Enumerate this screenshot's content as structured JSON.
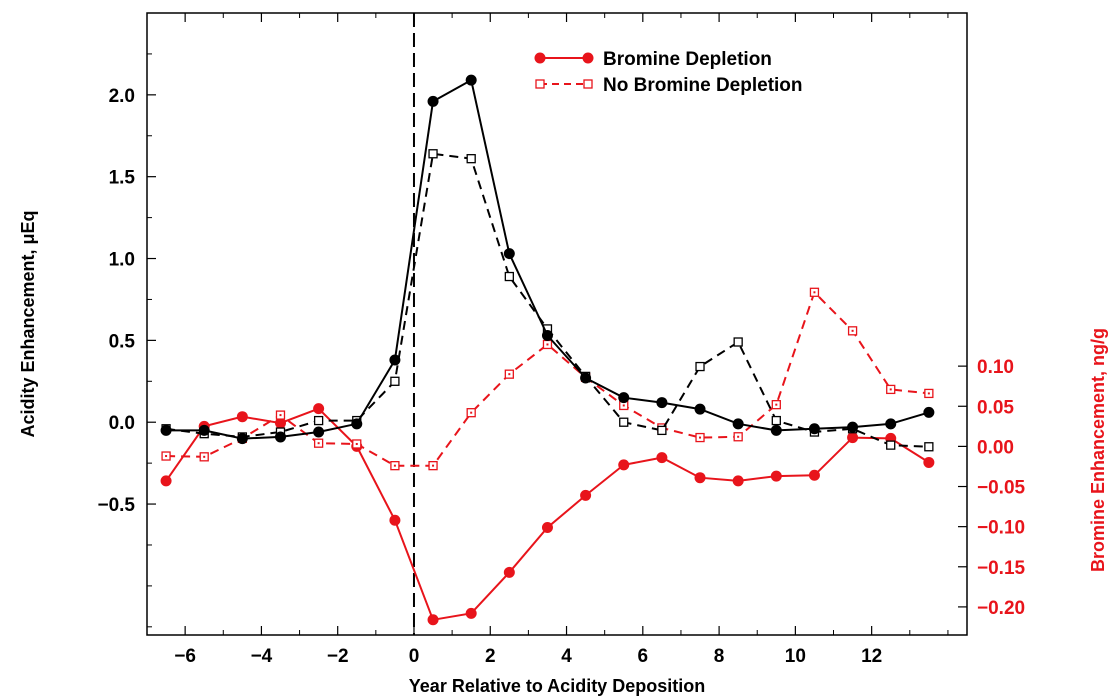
{
  "chart_data": {
    "type": "line",
    "xlabel": "Year Relative to Acidity Deposition",
    "ylabel_left": "Acidity Enhancement, μEq",
    "ylabel_right": "Bromine Enhancement, ng/g",
    "xlim": [
      -7,
      14.5
    ],
    "xticks": [
      -6,
      -4,
      -2,
      0,
      2,
      4,
      6,
      8,
      10,
      12
    ],
    "xtick_labels": [
      "−6",
      "−4",
      "−2",
      "0",
      "2",
      "4",
      "6",
      "8",
      "10",
      "12"
    ],
    "ylim_left": [
      -1.3,
      2.5
    ],
    "yticks_left": [
      -0.5,
      0.0,
      0.5,
      1.0,
      1.5,
      2.0
    ],
    "ytick_labels_left": [
      "−0.5",
      "0.0",
      "0.5",
      "1.0",
      "1.5",
      "2.0"
    ],
    "ylim_right": [
      -0.235,
      0.54
    ],
    "yticks_right": [
      -0.2,
      -0.15,
      -0.1,
      -0.05,
      0.0,
      0.05,
      0.1
    ],
    "ytick_labels_right": [
      "−0.20",
      "−0.15",
      "−0.10",
      "−0.05",
      "0.00",
      "0.05",
      "0.10"
    ],
    "vertical_line_x": 0,
    "legend_position": "top-center",
    "colors": {
      "black": "#000000",
      "red": "#e8141b"
    },
    "x": [
      -6.5,
      -5.5,
      -4.5,
      -3.5,
      -2.5,
      -1.5,
      -0.5,
      0.5,
      1.5,
      2.5,
      3.5,
      4.5,
      5.5,
      6.5,
      7.5,
      8.5,
      9.5,
      10.5,
      11.5,
      12.5,
      13.5
    ],
    "series": [
      {
        "name": "Bromine Depletion",
        "axis": "left",
        "color": "#000000",
        "style": "solid",
        "marker": "filled-circle",
        "in_legend": false,
        "values": [
          -0.05,
          -0.05,
          -0.1,
          -0.09,
          -0.06,
          -0.01,
          0.38,
          1.96,
          2.09,
          1.03,
          0.53,
          0.27,
          0.15,
          0.12,
          0.08,
          -0.01,
          -0.05,
          -0.04,
          -0.03,
          -0.01,
          0.06
        ]
      },
      {
        "name": "No Bromine Depletion",
        "axis": "left",
        "color": "#000000",
        "style": "dashed",
        "marker": "open-square",
        "in_legend": false,
        "values": [
          -0.04,
          -0.07,
          -0.09,
          -0.06,
          0.01,
          0.01,
          0.25,
          1.64,
          1.61,
          0.89,
          0.57,
          0.28,
          0.0,
          -0.05,
          0.34,
          0.49,
          0.01,
          -0.06,
          -0.04,
          -0.14,
          -0.15
        ]
      },
      {
        "name": "Bromine Depletion",
        "axis": "right",
        "color": "#e8141b",
        "style": "solid",
        "marker": "filled-circle",
        "in_legend": true,
        "values": [
          -0.043,
          0.025,
          0.037,
          0.029,
          0.047,
          0.0,
          -0.092,
          -0.216,
          -0.208,
          -0.157,
          -0.101,
          -0.061,
          -0.023,
          -0.014,
          -0.039,
          -0.043,
          -0.037,
          -0.036,
          0.011,
          0.01,
          -0.02
        ]
      },
      {
        "name": "No Bromine Depletion",
        "axis": "right",
        "color": "#e8141b",
        "style": "dashed",
        "marker": "open-square-dot",
        "in_legend": true,
        "values": [
          -0.012,
          -0.013,
          0.01,
          0.039,
          0.004,
          0.003,
          -0.024,
          -0.024,
          0.042,
          0.09,
          0.127,
          0.086,
          0.051,
          0.023,
          0.011,
          0.012,
          0.052,
          0.192,
          0.144,
          0.071,
          0.066
        ]
      }
    ]
  }
}
